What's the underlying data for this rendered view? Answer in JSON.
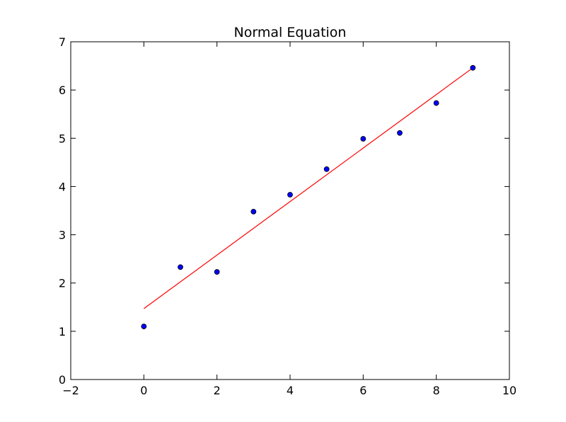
{
  "chart_data": {
    "type": "scatter",
    "title": "Normal Equation",
    "xlabel": "",
    "ylabel": "",
    "xlim": [
      -2,
      10
    ],
    "ylim": [
      0,
      7
    ],
    "grid": false,
    "x_ticks": [
      -2,
      0,
      2,
      4,
      6,
      8,
      10
    ],
    "y_ticks": [
      0,
      1,
      2,
      3,
      4,
      5,
      6,
      7
    ],
    "x_tick_labels": [
      "−2",
      "0",
      "2",
      "4",
      "6",
      "8",
      "10"
    ],
    "y_tick_labels": [
      "0",
      "1",
      "2",
      "3",
      "4",
      "5",
      "6",
      "7"
    ],
    "series": [
      {
        "type": "scatter",
        "x": [
          0,
          1,
          2,
          3,
          4,
          5,
          6,
          7,
          8,
          9
        ],
        "y": [
          1.1,
          2.33,
          2.23,
          3.48,
          3.83,
          4.36,
          4.99,
          5.11,
          5.73,
          6.46
        ],
        "color": "#0000ff"
      },
      {
        "type": "line",
        "x": [
          0,
          9
        ],
        "y": [
          1.47,
          6.46
        ],
        "color": "#ff0000"
      }
    ]
  }
}
